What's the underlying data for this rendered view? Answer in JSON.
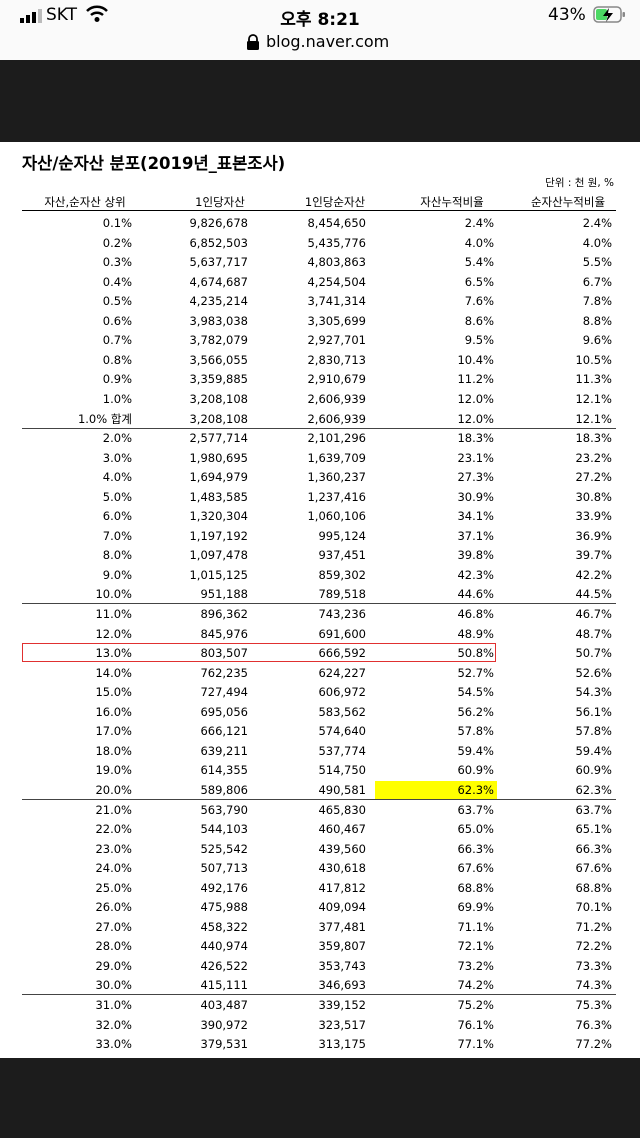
{
  "status_bar": {
    "carrier": "SKT",
    "time": "오후 8:21",
    "battery": "43%"
  },
  "address_bar": {
    "url": "blog.naver.com"
  },
  "table": {
    "title": "자산/순자산 분포(2019년_표본조사)",
    "unit": "단위 : 천 원, %",
    "headers": [
      "자산,순자산 상위",
      "1인당자산",
      "1인당순자산",
      "자산누적비율",
      "순자산누적비율"
    ],
    "rows": [
      [
        "0.1%",
        "9,826,678",
        "8,454,650",
        "2.4%",
        "2.4%"
      ],
      [
        "0.2%",
        "6,852,503",
        "5,435,776",
        "4.0%",
        "4.0%"
      ],
      [
        "0.3%",
        "5,637,717",
        "4,803,863",
        "5.4%",
        "5.5%"
      ],
      [
        "0.4%",
        "4,674,687",
        "4,254,504",
        "6.5%",
        "6.7%"
      ],
      [
        "0.5%",
        "4,235,214",
        "3,741,314",
        "7.6%",
        "7.8%"
      ],
      [
        "0.6%",
        "3,983,038",
        "3,305,699",
        "8.6%",
        "8.8%"
      ],
      [
        "0.7%",
        "3,782,079",
        "2,927,701",
        "9.5%",
        "9.6%"
      ],
      [
        "0.8%",
        "3,566,055",
        "2,830,713",
        "10.4%",
        "10.5%"
      ],
      [
        "0.9%",
        "3,359,885",
        "2,910,679",
        "11.2%",
        "11.3%"
      ],
      [
        "1.0%",
        "3,208,108",
        "2,606,939",
        "12.0%",
        "12.1%"
      ],
      [
        "1.0% 합계",
        "3,208,108",
        "2,606,939",
        "12.0%",
        "12.1%"
      ],
      [
        "2.0%",
        "2,577,714",
        "2,101,296",
        "18.3%",
        "18.3%"
      ],
      [
        "3.0%",
        "1,980,695",
        "1,639,709",
        "23.1%",
        "23.2%"
      ],
      [
        "4.0%",
        "1,694,979",
        "1,360,237",
        "27.3%",
        "27.2%"
      ],
      [
        "5.0%",
        "1,483,585",
        "1,237,416",
        "30.9%",
        "30.8%"
      ],
      [
        "6.0%",
        "1,320,304",
        "1,060,106",
        "34.1%",
        "33.9%"
      ],
      [
        "7.0%",
        "1,197,192",
        "995,124",
        "37.1%",
        "36.9%"
      ],
      [
        "8.0%",
        "1,097,478",
        "937,451",
        "39.8%",
        "39.7%"
      ],
      [
        "9.0%",
        "1,015,125",
        "859,302",
        "42.3%",
        "42.2%"
      ],
      [
        "10.0%",
        "951,188",
        "789,518",
        "44.6%",
        "44.5%"
      ],
      [
        "11.0%",
        "896,362",
        "743,236",
        "46.8%",
        "46.7%"
      ],
      [
        "12.0%",
        "845,976",
        "691,600",
        "48.9%",
        "48.7%"
      ],
      [
        "13.0%",
        "803,507",
        "666,592",
        "50.8%",
        "50.7%"
      ],
      [
        "14.0%",
        "762,235",
        "624,227",
        "52.7%",
        "52.6%"
      ],
      [
        "15.0%",
        "727,494",
        "606,972",
        "54.5%",
        "54.3%"
      ],
      [
        "16.0%",
        "695,056",
        "583,562",
        "56.2%",
        "56.1%"
      ],
      [
        "17.0%",
        "666,121",
        "574,640",
        "57.8%",
        "57.8%"
      ],
      [
        "18.0%",
        "639,211",
        "537,774",
        "59.4%",
        "59.4%"
      ],
      [
        "19.0%",
        "614,355",
        "514,750",
        "60.9%",
        "60.9%"
      ],
      [
        "20.0%",
        "589,806",
        "490,581",
        "62.3%",
        "62.3%"
      ],
      [
        "21.0%",
        "563,790",
        "465,830",
        "63.7%",
        "63.7%"
      ],
      [
        "22.0%",
        "544,103",
        "460,467",
        "65.0%",
        "65.1%"
      ],
      [
        "23.0%",
        "525,542",
        "439,560",
        "66.3%",
        "66.3%"
      ],
      [
        "24.0%",
        "507,713",
        "430,618",
        "67.6%",
        "67.6%"
      ],
      [
        "25.0%",
        "492,176",
        "417,812",
        "68.8%",
        "68.8%"
      ],
      [
        "26.0%",
        "475,988",
        "409,094",
        "69.9%",
        "70.1%"
      ],
      [
        "27.0%",
        "458,322",
        "377,481",
        "71.1%",
        "71.2%"
      ],
      [
        "28.0%",
        "440,974",
        "359,807",
        "72.1%",
        "72.2%"
      ],
      [
        "29.0%",
        "426,522",
        "353,743",
        "73.2%",
        "73.3%"
      ],
      [
        "30.0%",
        "415,111",
        "346,693",
        "74.2%",
        "74.3%"
      ],
      [
        "31.0%",
        "403,487",
        "339,152",
        "75.2%",
        "75.3%"
      ],
      [
        "32.0%",
        "390,972",
        "323,517",
        "76.1%",
        "76.3%"
      ],
      [
        "33.0%",
        "379,531",
        "313,175",
        "77.1%",
        "77.2%"
      ]
    ]
  }
}
